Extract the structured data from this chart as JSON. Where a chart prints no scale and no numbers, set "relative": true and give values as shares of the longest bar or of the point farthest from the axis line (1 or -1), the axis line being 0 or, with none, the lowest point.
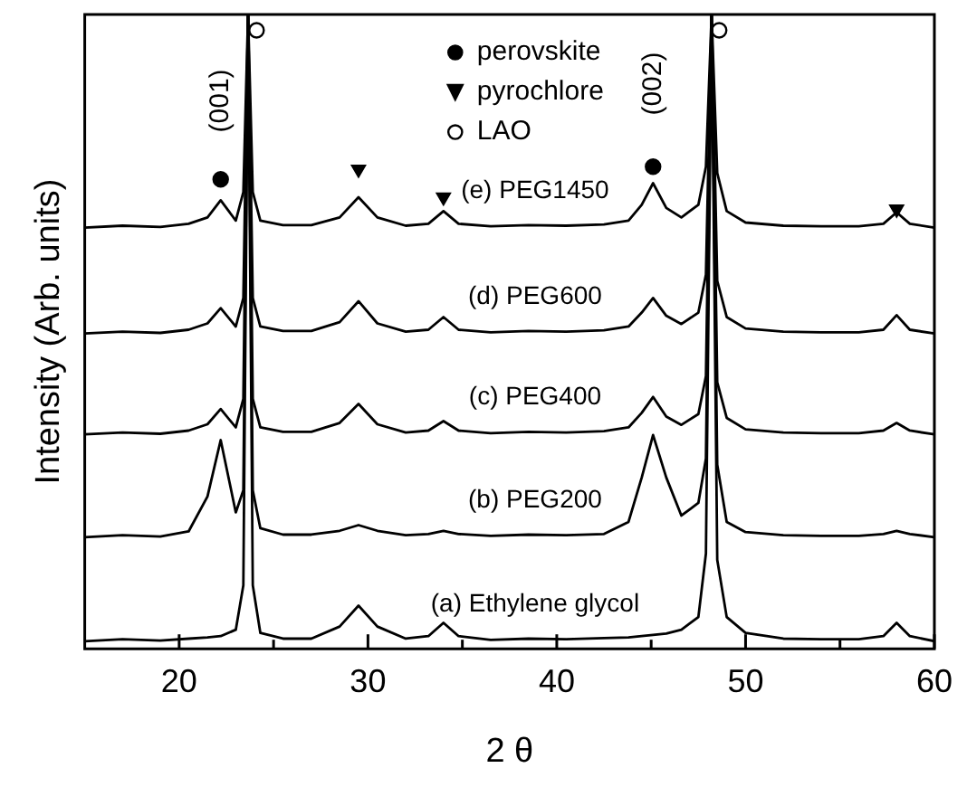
{
  "chart_data": {
    "type": "line",
    "relative": true,
    "xlabel": "2 θ",
    "ylabel": "Intensity (Arb. units)",
    "xlim": [
      15,
      60
    ],
    "xticks": [
      20,
      {
        "value": 25,
        "label": null
      },
      30,
      {
        "value": 35,
        "label": null
      },
      40,
      {
        "value": 45,
        "label": null
      },
      50,
      {
        "value": 55,
        "label": null
      },
      60
    ],
    "legend": "top",
    "tick_labels": "x",
    "grid": false,
    "line_style": "solid",
    "x": [
      15,
      17,
      19,
      20.5,
      21.5,
      22.2,
      23,
      23.4,
      23.65,
      23.9,
      24.3,
      25.5,
      27,
      28.5,
      29.5,
      30.5,
      32,
      33.2,
      34,
      34.8,
      36.5,
      38.5,
      40.5,
      42.5,
      43.8,
      44.5,
      45.1,
      45.8,
      46.6,
      47.5,
      47.9,
      48.2,
      48.5,
      49,
      50,
      52,
      54,
      56,
      57.3,
      58,
      58.7,
      60
    ],
    "series": [
      {
        "name": "(e) PEG1450",
        "color": "#000000",
        "values": [
          0.664,
          0.667,
          0.665,
          0.67,
          0.68,
          0.707,
          0.675,
          0.72,
          1,
          0.72,
          0.675,
          0.668,
          0.668,
          0.68,
          0.712,
          0.68,
          0.667,
          0.67,
          0.69,
          0.67,
          0.666,
          0.668,
          0.667,
          0.669,
          0.675,
          0.7,
          0.734,
          0.695,
          0.68,
          0.7,
          0.76,
          1,
          0.75,
          0.69,
          0.672,
          0.667,
          0.666,
          0.666,
          0.67,
          0.688,
          0.67,
          0.664
        ]
      },
      {
        "name": "(d) PEG600",
        "color": "#000000",
        "values": [
          0.497,
          0.5,
          0.498,
          0.503,
          0.513,
          0.537,
          0.508,
          0.553,
          1,
          0.553,
          0.508,
          0.501,
          0.501,
          0.515,
          0.548,
          0.513,
          0.5,
          0.503,
          0.523,
          0.503,
          0.499,
          0.501,
          0.5,
          0.502,
          0.508,
          0.53,
          0.553,
          0.525,
          0.512,
          0.53,
          0.59,
          1,
          0.58,
          0.523,
          0.505,
          0.5,
          0.499,
          0.499,
          0.503,
          0.526,
          0.503,
          0.497
        ]
      },
      {
        "name": "(c) PEG400",
        "color": "#000000",
        "values": [
          0.338,
          0.341,
          0.339,
          0.344,
          0.354,
          0.378,
          0.349,
          0.394,
          1,
          0.394,
          0.349,
          0.342,
          0.342,
          0.356,
          0.386,
          0.354,
          0.341,
          0.344,
          0.359,
          0.344,
          0.34,
          0.342,
          0.341,
          0.343,
          0.349,
          0.372,
          0.397,
          0.366,
          0.353,
          0.37,
          0.43,
          1,
          0.42,
          0.364,
          0.346,
          0.341,
          0.34,
          0.34,
          0.344,
          0.356,
          0.344,
          0.338
        ]
      },
      {
        "name": "(b) PEG200",
        "color": "#000000",
        "values": [
          0.176,
          0.179,
          0.177,
          0.185,
          0.24,
          0.329,
          0.215,
          0.25,
          1,
          0.25,
          0.19,
          0.18,
          0.18,
          0.186,
          0.195,
          0.186,
          0.179,
          0.181,
          0.186,
          0.181,
          0.178,
          0.18,
          0.179,
          0.181,
          0.2,
          0.27,
          0.337,
          0.27,
          0.21,
          0.23,
          0.3,
          1,
          0.29,
          0.2,
          0.184,
          0.179,
          0.178,
          0.178,
          0.181,
          0.186,
          0.181,
          0.176
        ]
      },
      {
        "name": "(a) Ethylene glycol",
        "color": "#000000",
        "values": [
          0.012,
          0.015,
          0.013,
          0.016,
          0.018,
          0.02,
          0.03,
          0.1,
          1,
          0.1,
          0.025,
          0.016,
          0.016,
          0.035,
          0.068,
          0.035,
          0.016,
          0.02,
          0.041,
          0.02,
          0.014,
          0.016,
          0.015,
          0.017,
          0.018,
          0.02,
          0.022,
          0.024,
          0.03,
          0.05,
          0.15,
          1,
          0.14,
          0.05,
          0.025,
          0.016,
          0.015,
          0.015,
          0.02,
          0.041,
          0.02,
          0.012
        ]
      },
      {
        "name": "perovskite",
        "type": "scatter",
        "marker": "circle",
        "color": "#000000",
        "x": [
          22.2,
          45.1
        ],
        "values": [
          0.74,
          0.76
        ]
      },
      {
        "name": "pyrochlore",
        "type": "scatter",
        "marker": "triangle",
        "color": "#000000",
        "x": [
          29.5,
          34,
          58
        ],
        "values": [
          0.756,
          0.712,
          0.693
        ]
      },
      {
        "name": "LAO",
        "type": "scatter",
        "marker": "circle",
        "color": "#ffffff",
        "x": [
          24.1,
          48.6
        ],
        "values": [
          0.975,
          0.975
        ]
      }
    ],
    "annotations": [
      {
        "text": "(001)",
        "x": 22.2,
        "y": 0.707
      },
      {
        "text": "(002)",
        "x": 45.1,
        "y": 0.734
      }
    ]
  }
}
